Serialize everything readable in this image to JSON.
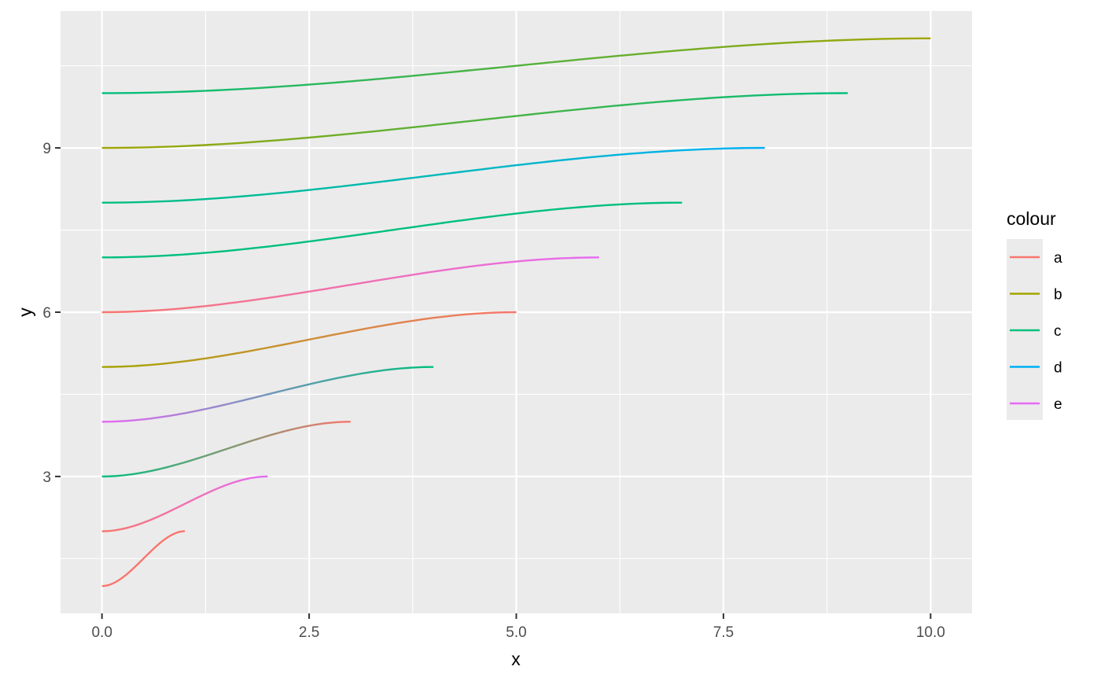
{
  "chart_data": {
    "type": "line",
    "xlabel": "x",
    "ylabel": "y",
    "xlim": [
      -0.5,
      10.5
    ],
    "ylim": [
      0.5,
      11.5
    ],
    "x_ticks": [
      0,
      2.5,
      5,
      7.5,
      10
    ],
    "x_tick_labels": [
      "0.0",
      "2.5",
      "5.0",
      "7.5",
      "10.0"
    ],
    "y_ticks": [
      3,
      6,
      9
    ],
    "y_tick_labels": [
      "3",
      "6",
      "9"
    ],
    "grid": true,
    "background": "#EBEBEB",
    "legend": {
      "title": "colour",
      "position": "right",
      "entries": [
        {
          "label": "a",
          "color": "#F8766D"
        },
        {
          "label": "b",
          "color": "#A3A500"
        },
        {
          "label": "c",
          "color": "#00BF7D"
        },
        {
          "label": "d",
          "color": "#00B0F6"
        },
        {
          "label": "e",
          "color": "#E76BF3"
        }
      ]
    },
    "series": [
      {
        "x_start": 0,
        "y_start": 1,
        "x_end": 1,
        "y_end": 2,
        "color_start": "#F8766D",
        "color_end": "#F8766D"
      },
      {
        "x_start": 0,
        "y_start": 2,
        "x_end": 2,
        "y_end": 3,
        "color_start": "#F8766D",
        "color_end": "#E76BF3"
      },
      {
        "x_start": 0,
        "y_start": 3,
        "x_end": 3,
        "y_end": 4,
        "color_start": "#00BF7D",
        "color_end": "#F8766D"
      },
      {
        "x_start": 0,
        "y_start": 4,
        "x_end": 4,
        "y_end": 5,
        "color_start": "#E76BF3",
        "color_end": "#00BF7D"
      },
      {
        "x_start": 0,
        "y_start": 5,
        "x_end": 5,
        "y_end": 6,
        "color_start": "#A3A500",
        "color_end": "#F8766D"
      },
      {
        "x_start": 0,
        "y_start": 6,
        "x_end": 6,
        "y_end": 7,
        "color_start": "#F8766D",
        "color_end": "#E76BF3"
      },
      {
        "x_start": 0,
        "y_start": 7,
        "x_end": 7,
        "y_end": 8,
        "color_start": "#00BF7D",
        "color_end": "#00BF7D"
      },
      {
        "x_start": 0,
        "y_start": 8,
        "x_end": 8,
        "y_end": 9,
        "color_start": "#00BF7D",
        "color_end": "#00B0F6"
      },
      {
        "x_start": 0,
        "y_start": 9,
        "x_end": 9,
        "y_end": 10,
        "color_start": "#A3A500",
        "color_end": "#00BF7D"
      },
      {
        "x_start": 0,
        "y_start": 10,
        "x_end": 10,
        "y_end": 11,
        "color_start": "#00BF7D",
        "color_end": "#A3A500"
      }
    ]
  }
}
